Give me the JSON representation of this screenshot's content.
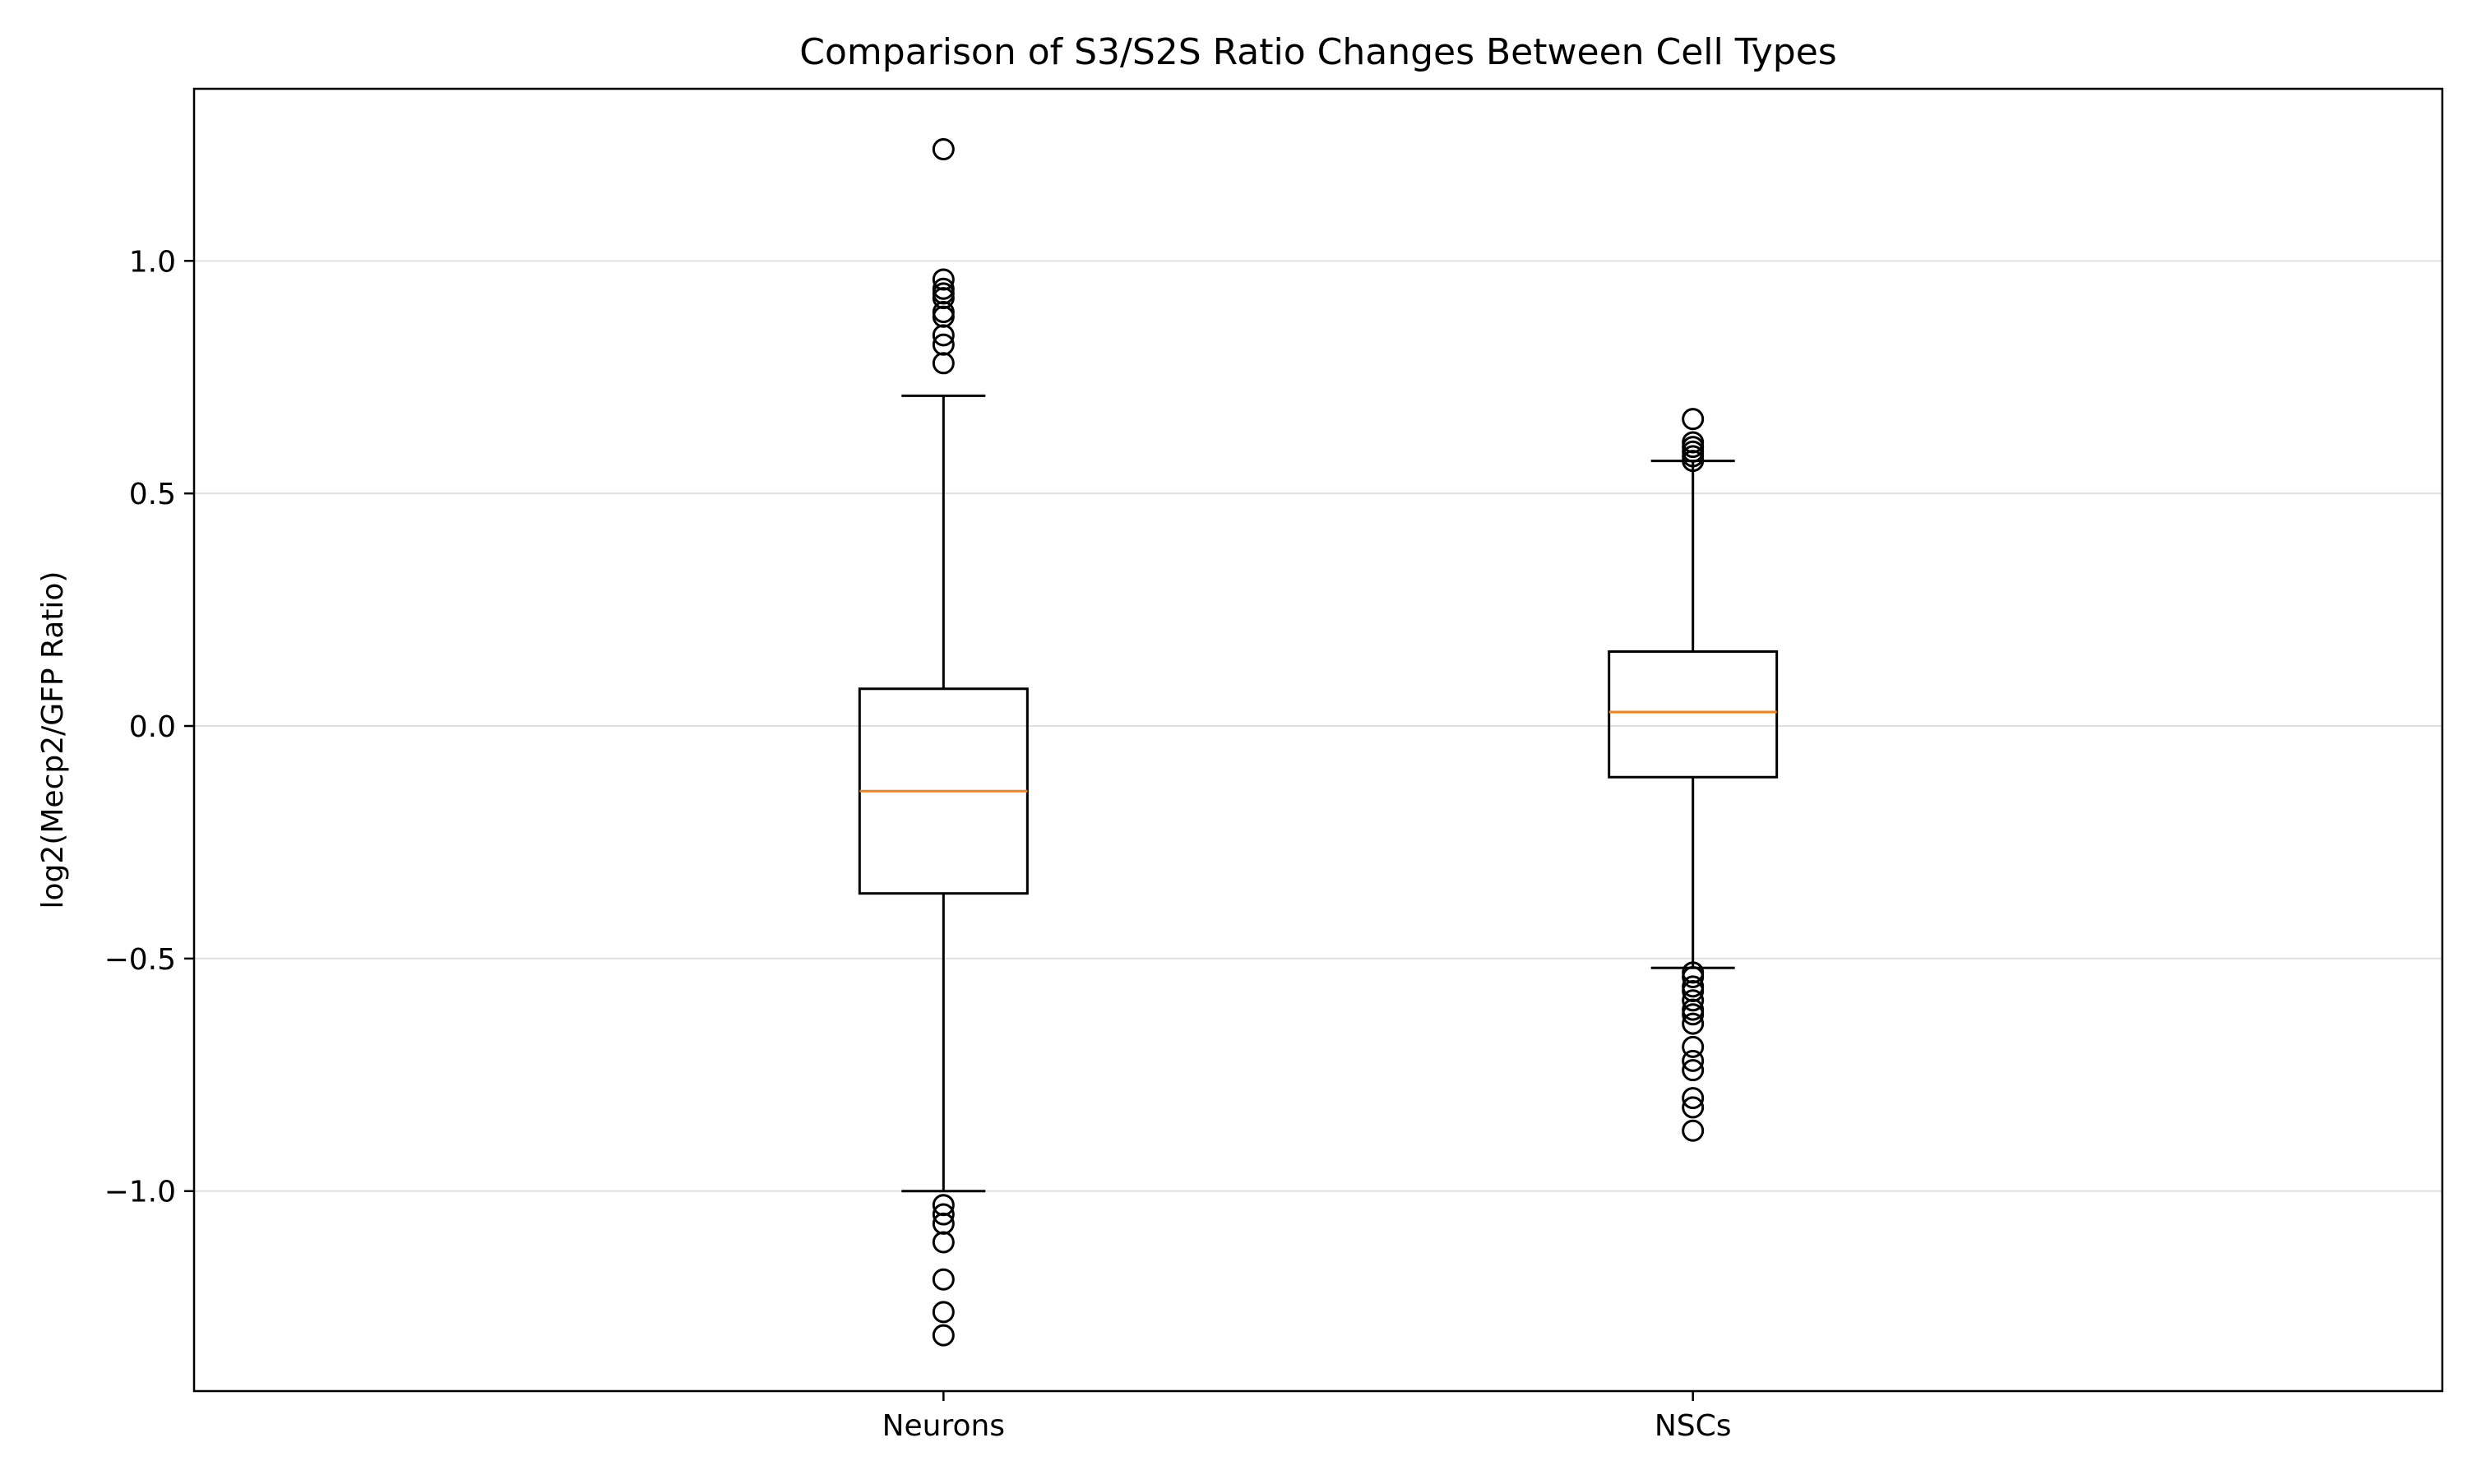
{
  "chart_data": {
    "type": "box",
    "title": "Comparison of S3/S2S Ratio Changes Between Cell Types",
    "xlabel": "",
    "ylabel": "log2(Mecp2/GFP Ratio)",
    "categories": [
      "Neurons",
      "NSCs"
    ],
    "ylim": [
      -1.43,
      1.37
    ],
    "yticks": [
      -1.0,
      -0.5,
      0.0,
      0.5,
      1.0
    ],
    "ytick_labels": [
      "−1.0",
      "−0.5",
      "0.0",
      "0.5",
      "1.0"
    ],
    "grid": "horizontal",
    "boxes": [
      {
        "category": "Neurons",
        "whisker_low": -1.0,
        "q1": -0.36,
        "median": -0.14,
        "q3": 0.08,
        "whisker_high": 0.71,
        "outliers": [
          1.24,
          0.96,
          0.94,
          0.93,
          0.92,
          0.89,
          0.88,
          0.84,
          0.82,
          0.78,
          -1.03,
          -1.05,
          -1.07,
          -1.11,
          -1.19,
          -1.26,
          -1.31
        ]
      },
      {
        "category": "NSCs",
        "whisker_low": -0.52,
        "q1": -0.11,
        "median": 0.03,
        "q3": 0.16,
        "whisker_high": 0.57,
        "outliers": [
          0.66,
          0.61,
          0.6,
          0.59,
          0.58,
          0.57,
          -0.53,
          -0.54,
          -0.56,
          -0.57,
          -0.59,
          -0.61,
          -0.62,
          -0.64,
          -0.69,
          -0.72,
          -0.74,
          -0.8,
          -0.82,
          -0.87
        ]
      }
    ],
    "colors": {
      "box": "#000000",
      "median": "#ff7f0e",
      "grid": "#e0e0e0",
      "outlier_edge": "#000000"
    }
  }
}
